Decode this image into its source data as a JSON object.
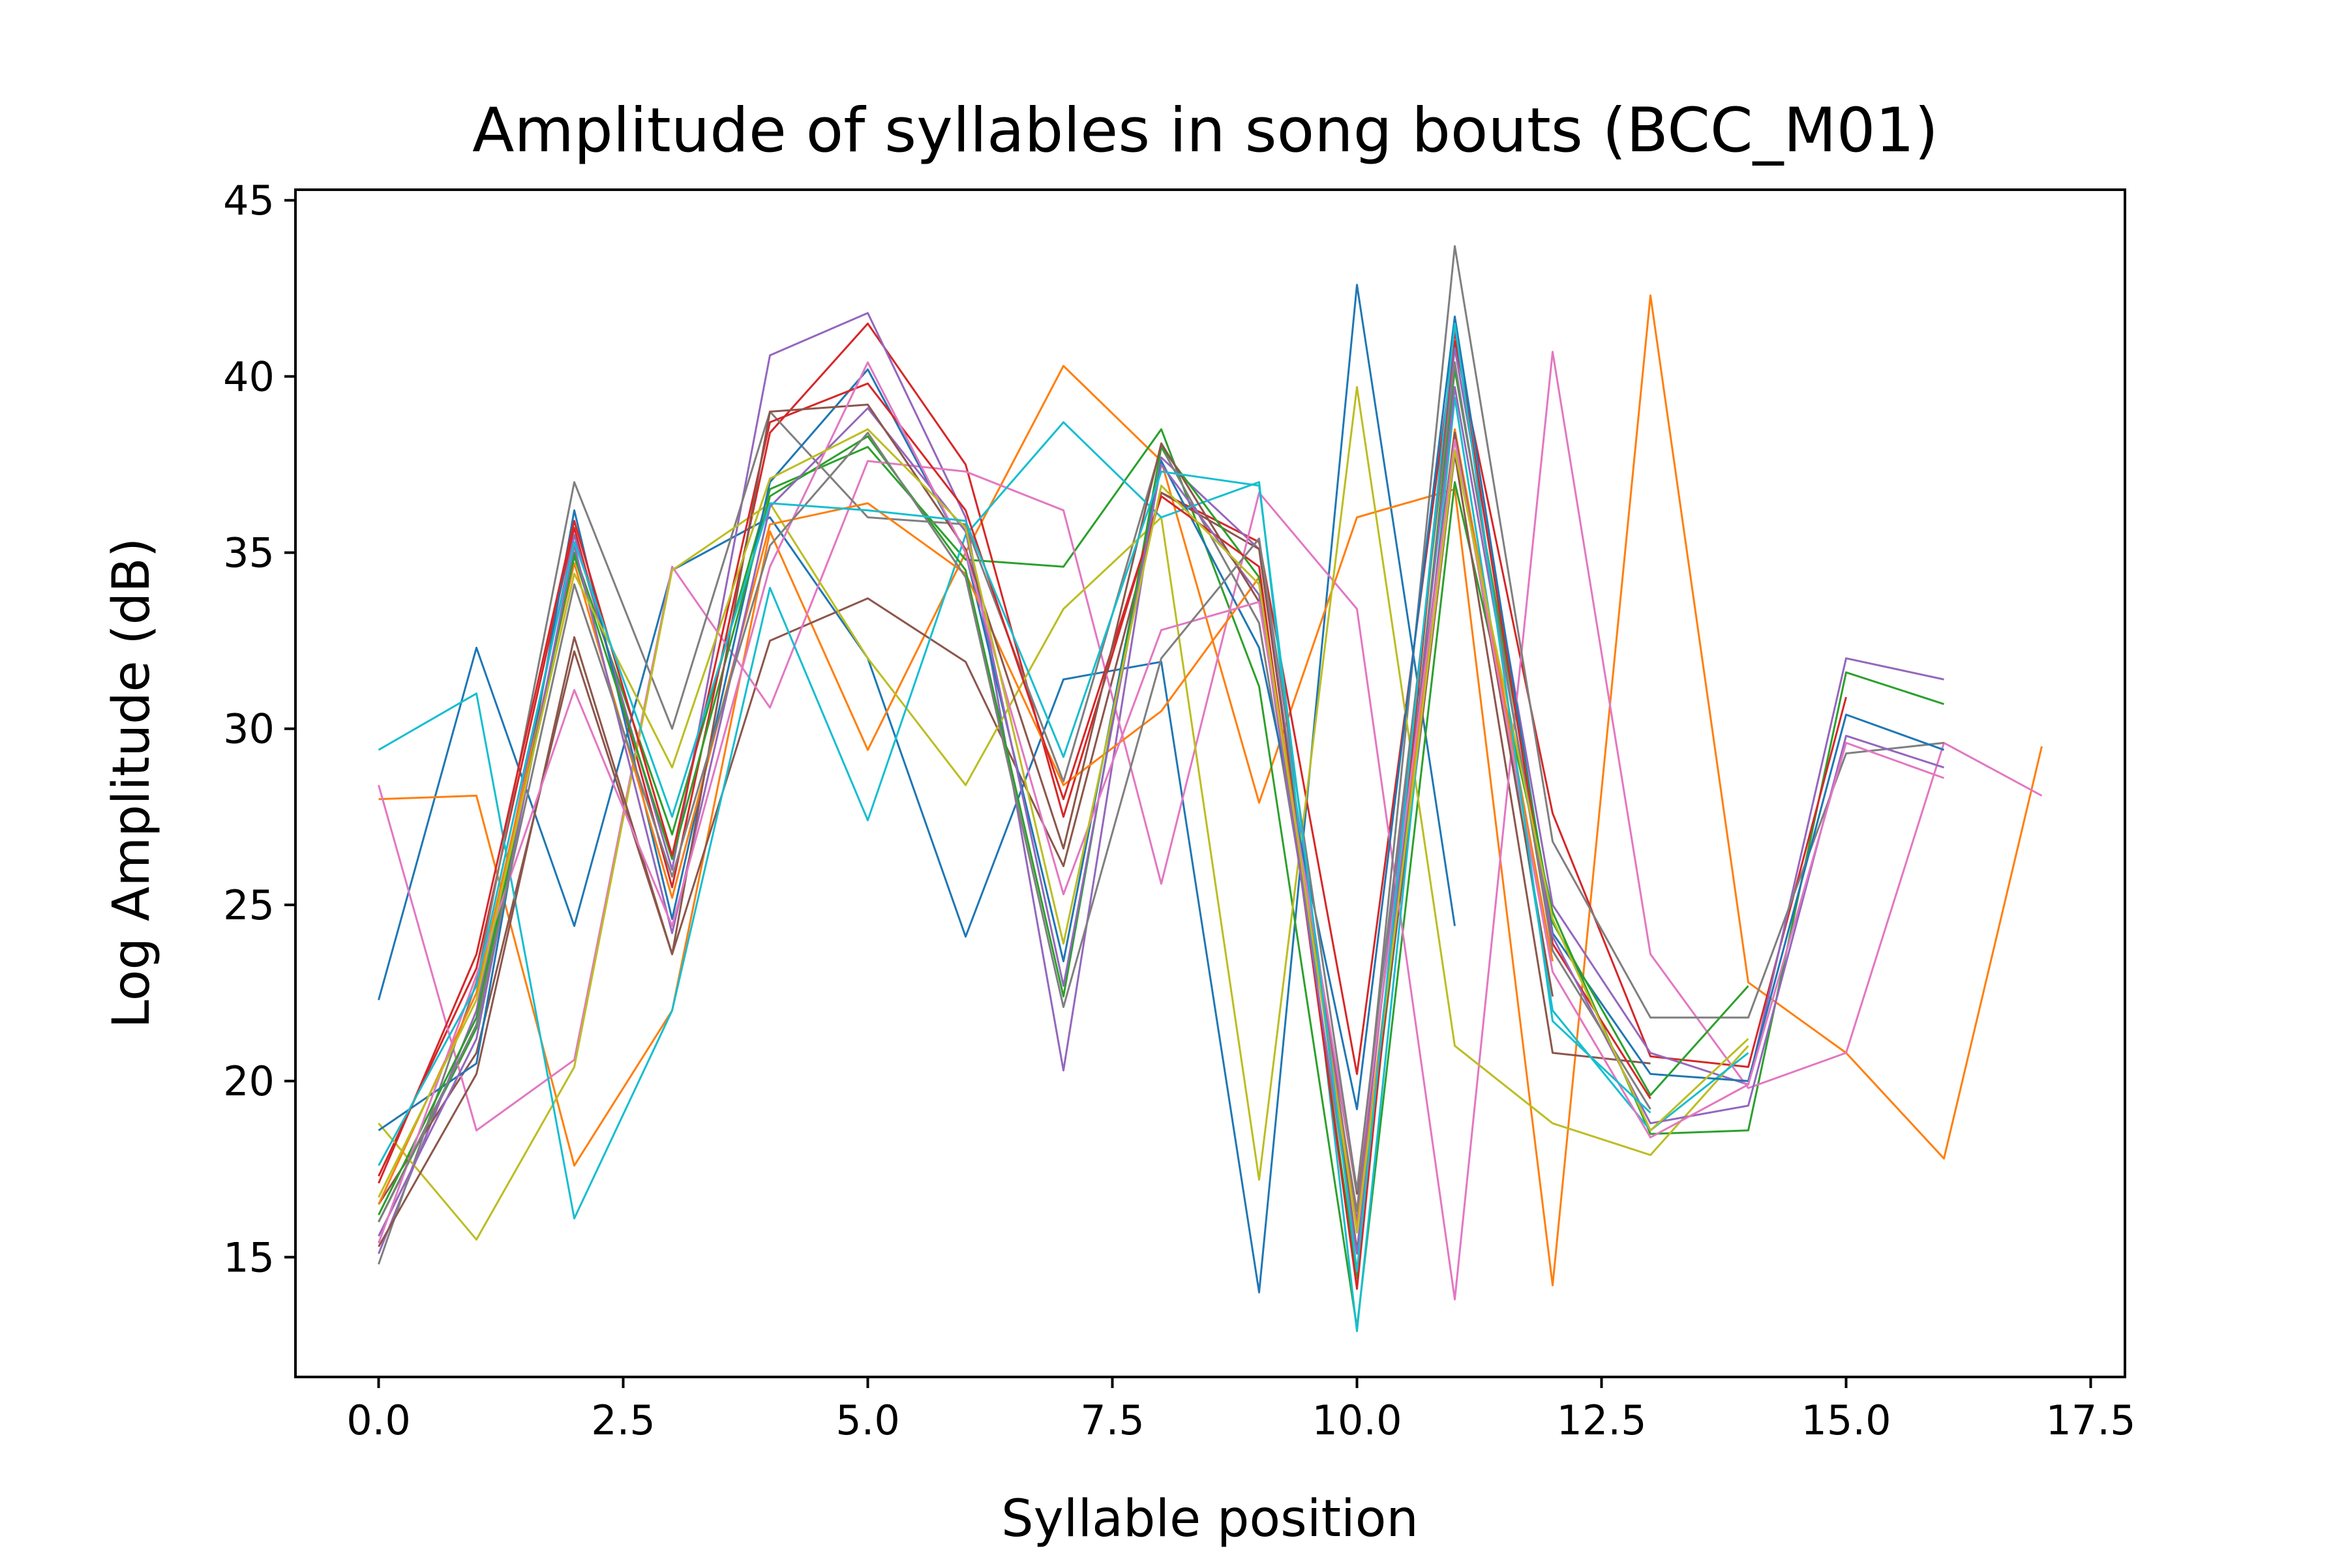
{
  "chart_data": {
    "type": "line",
    "title": "Amplitude of syllables in song bouts (BCC_M01)",
    "xlabel": "Syllable position",
    "ylabel": "Log Amplitude (dB)",
    "xlim": [
      -0.85,
      17.85
    ],
    "ylim": [
      11.6,
      45.3
    ],
    "xticks": [
      0.0,
      2.5,
      5.0,
      7.5,
      10.0,
      12.5,
      15.0,
      17.5
    ],
    "xtick_labels": [
      "0.0",
      "2.5",
      "5.0",
      "7.5",
      "10.0",
      "12.5",
      "15.0",
      "17.5"
    ],
    "yticks": [
      15,
      20,
      25,
      30,
      35,
      40,
      45
    ],
    "ytick_labels": [
      "15",
      "20",
      "25",
      "30",
      "35",
      "40",
      "45"
    ],
    "grid": false,
    "legend": "none",
    "series": [
      {
        "color": "#1f77b4",
        "x": [
          0,
          1,
          2,
          3,
          4,
          5,
          6,
          7,
          8,
          9,
          10,
          11
        ],
        "y": [
          22.3,
          32.3,
          24.4,
          34.5,
          36.0,
          32.0,
          24.1,
          31.4,
          31.9,
          14.0,
          42.6,
          24.4
        ]
      },
      {
        "color": "#ff7f0e",
        "x": [
          0,
          1,
          2,
          3,
          4,
          5,
          6,
          7,
          8,
          9,
          10,
          11,
          12,
          13,
          14,
          15,
          16,
          17
        ],
        "y": [
          28.0,
          28.1,
          17.6,
          22.0,
          35.6,
          29.4,
          35.0,
          40.3,
          37.6,
          27.9,
          36.0,
          36.8,
          14.2,
          42.3,
          22.8,
          20.8,
          17.8,
          29.5
        ]
      },
      {
        "color": "#2ca02c",
        "x": [
          0,
          1,
          2,
          3,
          4,
          5,
          6,
          7,
          8,
          9,
          10,
          11,
          12,
          13,
          14,
          15,
          16
        ],
        "y": [
          16.0,
          21.5,
          35.0,
          27.0,
          36.8,
          38.0,
          34.8,
          34.6,
          38.5,
          31.2,
          13.0,
          37.0,
          24.8,
          18.5,
          18.6,
          31.6,
          30.7
        ]
      },
      {
        "color": "#d62728",
        "x": [
          0,
          1,
          2,
          3,
          4,
          5,
          6,
          7,
          8,
          9,
          10,
          11,
          12,
          13,
          14,
          15
        ],
        "y": [
          17.3,
          23.2,
          35.7,
          25.5,
          38.4,
          41.5,
          37.5,
          27.5,
          36.7,
          35.3,
          20.2,
          41.0,
          27.6,
          20.7,
          20.4,
          30.9
        ]
      },
      {
        "color": "#9467bd",
        "x": [
          0,
          1,
          2,
          3,
          4,
          5,
          6,
          7,
          8,
          9,
          10,
          11,
          12,
          13,
          14,
          15,
          16
        ],
        "y": [
          15.1,
          22.0,
          35.5,
          26.0,
          40.6,
          41.8,
          36.0,
          20.3,
          37.7,
          35.1,
          16.0,
          40.8,
          25.0,
          20.8,
          19.9,
          32.0,
          31.4
        ]
      },
      {
        "color": "#8c564b",
        "x": [
          0,
          1,
          2,
          3,
          4,
          5,
          6,
          7,
          8,
          9,
          10,
          11,
          12,
          13
        ],
        "y": [
          16.5,
          20.8,
          32.2,
          23.6,
          32.5,
          33.7,
          31.9,
          26.1,
          36.7,
          35.1,
          15.2,
          37.8,
          20.8,
          20.5
        ]
      },
      {
        "color": "#e377c2",
        "x": [
          0,
          1,
          2,
          3,
          4,
          5,
          6,
          7,
          8,
          9,
          10,
          11,
          12,
          13,
          14,
          15,
          16,
          17
        ],
        "y": [
          28.4,
          18.6,
          20.6,
          34.6,
          30.6,
          37.6,
          37.3,
          36.2,
          25.6,
          36.7,
          33.4,
          13.8,
          40.7,
          23.6,
          19.8,
          20.8,
          29.6,
          28.1
        ]
      },
      {
        "color": "#7f7f7f",
        "x": [
          0,
          1,
          2,
          3,
          4,
          5,
          6,
          7,
          8,
          9,
          10,
          11,
          12,
          13,
          14,
          15,
          16
        ],
        "y": [
          14.8,
          22.8,
          37.0,
          30.0,
          39.0,
          36.0,
          35.8,
          28.5,
          38.0,
          33.0,
          16.3,
          43.7,
          26.8,
          21.8,
          21.8,
          29.3,
          29.6
        ]
      },
      {
        "color": "#bcbd22",
        "x": [
          0,
          1,
          2,
          3,
          4,
          5,
          6,
          7,
          8,
          9,
          10,
          11,
          12,
          13,
          14
        ],
        "y": [
          18.8,
          15.5,
          20.4,
          34.5,
          36.4,
          32.0,
          28.4,
          33.4,
          36.0,
          17.2,
          39.7,
          21.0,
          18.8,
          17.9,
          21.0
        ]
      },
      {
        "color": "#17becf",
        "x": [
          0,
          1,
          2,
          3,
          4,
          5,
          6,
          7,
          8,
          9,
          10,
          11,
          12,
          13,
          14
        ],
        "y": [
          29.4,
          31.0,
          16.1,
          22.0,
          34.0,
          27.4,
          35.5,
          38.7,
          36.0,
          37.0,
          12.9,
          39.4,
          22.0,
          18.6,
          20.8
        ]
      },
      {
        "color": "#1f77b4",
        "x": [
          0,
          1,
          2,
          3,
          4,
          5,
          6,
          7,
          8,
          9,
          10,
          11,
          12,
          13,
          14,
          15,
          16
        ],
        "y": [
          18.6,
          20.5,
          36.2,
          24.6,
          37.0,
          40.2,
          35.0,
          23.4,
          37.6,
          32.3,
          19.2,
          41.7,
          24.2,
          20.2,
          20.0,
          30.4,
          29.4
        ]
      },
      {
        "color": "#ff7f0e",
        "x": [
          0,
          1,
          2,
          3,
          4,
          5,
          6,
          7,
          8,
          9,
          10,
          11,
          12
        ],
        "y": [
          16.5,
          22.5,
          34.7,
          25.2,
          35.8,
          36.4,
          34.4,
          28.4,
          30.5,
          34.3,
          15.8,
          38.5,
          23.4
        ]
      },
      {
        "color": "#2ca02c",
        "x": [
          0,
          1,
          2,
          3,
          4,
          5,
          6,
          7,
          8,
          9,
          10,
          11,
          12,
          13,
          14
        ],
        "y": [
          16.2,
          21.8,
          34.9,
          26.3,
          36.6,
          38.3,
          34.5,
          22.4,
          38.0,
          34.3,
          14.4,
          40.2,
          24.5,
          19.6,
          22.7
        ]
      },
      {
        "color": "#d62728",
        "x": [
          0,
          1,
          2,
          3,
          4,
          5,
          6,
          7,
          8,
          9,
          10,
          11,
          12,
          13
        ],
        "y": [
          17.1,
          23.6,
          35.9,
          26.4,
          38.7,
          39.8,
          36.2,
          28.0,
          36.6,
          34.6,
          14.1,
          41.3,
          23.9,
          19.5
        ]
      },
      {
        "color": "#9467bd",
        "x": [
          0,
          1,
          2,
          3,
          4,
          5,
          6,
          7,
          8,
          9,
          10,
          11,
          12,
          13,
          14,
          15,
          16
        ],
        "y": [
          15.6,
          21.2,
          35.2,
          24.2,
          36.3,
          39.1,
          35.6,
          22.7,
          37.5,
          33.8,
          15.1,
          39.7,
          24.1,
          18.8,
          19.3,
          29.8,
          28.9
        ]
      },
      {
        "color": "#8c564b",
        "x": [
          0,
          1,
          2,
          3,
          4,
          5,
          6,
          7,
          8,
          9,
          10,
          11,
          12
        ],
        "y": [
          15.3,
          20.2,
          32.6,
          23.6,
          39.0,
          39.2,
          35.1,
          26.6,
          38.1,
          33.6,
          16.8,
          38.4,
          22.4
        ]
      },
      {
        "color": "#e377c2",
        "x": [
          0,
          1,
          2,
          3,
          4,
          5,
          6,
          7,
          8,
          9,
          10,
          11,
          12,
          13,
          14,
          15,
          16
        ],
        "y": [
          15.4,
          23.0,
          31.1,
          24.4,
          34.6,
          40.4,
          35.0,
          25.3,
          32.8,
          33.6,
          16.9,
          38.2,
          23.1,
          18.4,
          19.9,
          29.6,
          28.6
        ]
      },
      {
        "color": "#7f7f7f",
        "x": [
          0,
          1,
          2,
          3,
          4,
          5,
          6,
          7,
          8,
          9,
          10,
          11,
          12,
          13
        ],
        "y": [
          16.0,
          21.6,
          34.1,
          25.8,
          35.2,
          38.4,
          34.3,
          22.1,
          32.0,
          35.4,
          16.9,
          40.4,
          23.7,
          19.2
        ]
      },
      {
        "color": "#bcbd22",
        "x": [
          0,
          1,
          2,
          3,
          4,
          5,
          6,
          7,
          8,
          9,
          10,
          11,
          12,
          13,
          14
        ],
        "y": [
          16.7,
          22.3,
          34.4,
          28.9,
          37.1,
          38.5,
          35.7,
          23.9,
          36.9,
          34.1,
          15.7,
          37.9,
          24.6,
          18.6,
          21.2
        ]
      },
      {
        "color": "#17becf",
        "x": [
          0,
          1,
          2,
          3,
          4,
          5,
          6,
          7,
          8,
          9,
          10,
          11,
          12,
          13
        ],
        "y": [
          17.6,
          22.7,
          35.3,
          27.5,
          36.4,
          36.2,
          35.9,
          29.2,
          37.3,
          36.9,
          14.6,
          41.5,
          21.7,
          19.1
        ]
      }
    ]
  }
}
